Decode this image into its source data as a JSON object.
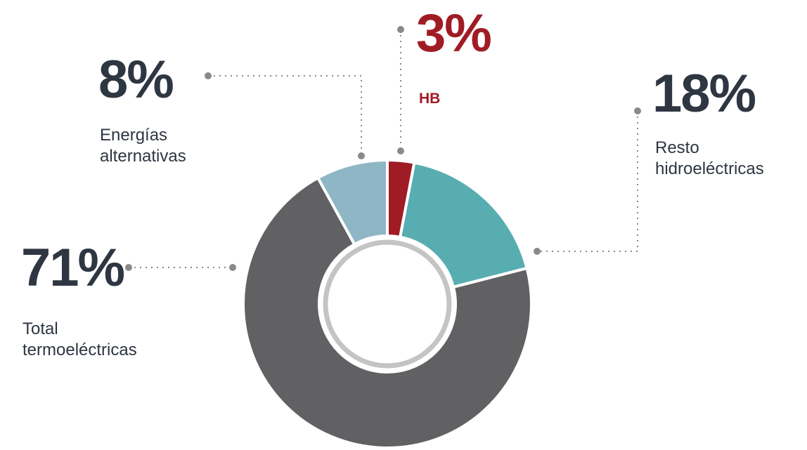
{
  "chart_data": {
    "type": "donut",
    "categories": [
      "HB",
      "Resto hidroeléctricas",
      "Total termoeléctricas",
      "Energías alternativas"
    ],
    "values": [
      3,
      18,
      71,
      8
    ],
    "value_labels": [
      "3%",
      "18%",
      "71%",
      "8%"
    ],
    "colors": [
      "#a01c24",
      "#58adb0",
      "#616164",
      "#8fb6c4"
    ]
  }
}
